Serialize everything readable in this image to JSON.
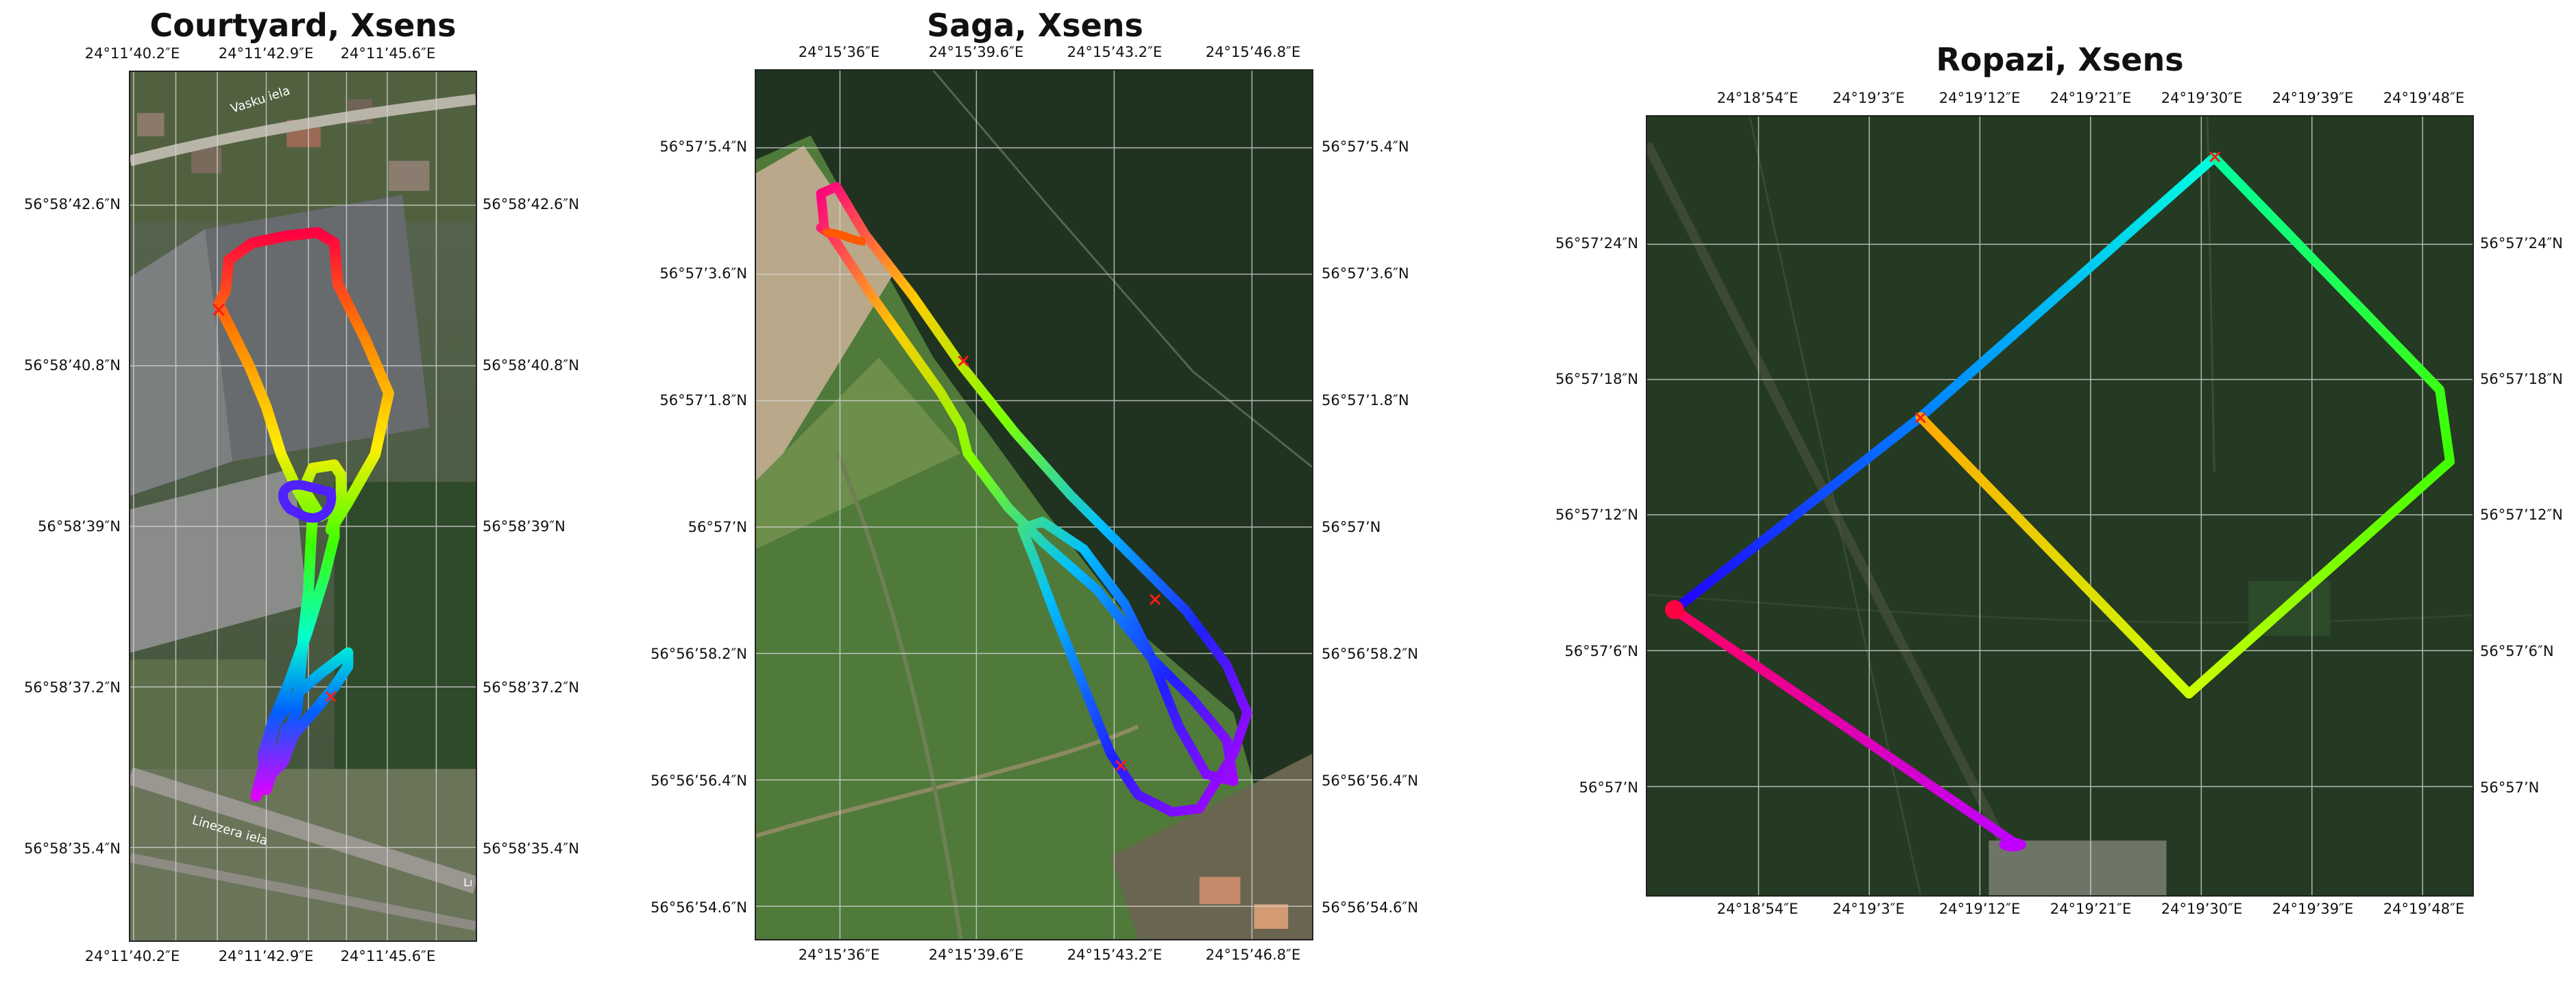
{
  "panels": [
    {
      "key": "courtyard",
      "title": "Courtyard, Xsens",
      "lon_ticks": [
        "24°11’40.2″E",
        "24°11’42.9″E",
        "24°11’45.6″E"
      ],
      "lat_ticks": [
        "56°58’42.6″N",
        "56°58’40.8″N",
        "56°58’39″N",
        "56°58’37.2″N",
        "56°58’35.4″N"
      ],
      "street_labels": [
        "Vasku iela",
        "Linezera iela",
        "Lı"
      ]
    },
    {
      "key": "saga",
      "title": "Saga, Xsens",
      "lon_ticks": [
        "24°15’36″E",
        "24°15’39.6″E",
        "24°15’43.2″E",
        "24°15’46.8″E"
      ],
      "lat_ticks": [
        "56°57’5.4″N",
        "56°57’3.6″N",
        "56°57’1.8″N",
        "56°57’N",
        "56°56’58.2″N",
        "56°56’56.4″N",
        "56°56’54.6″N"
      ]
    },
    {
      "key": "ropazi",
      "title": "Ropazi, Xsens",
      "lon_ticks": [
        "24°18’54″E",
        "24°19’3″E",
        "24°19’12″E",
        "24°19’21″E",
        "24°19’30″E",
        "24°19’39″E",
        "24°19’48″E"
      ],
      "lat_ticks": [
        "56°57’24″N",
        "56°57’18″N",
        "56°57’12″N",
        "56°57’6″N",
        "56°57’N"
      ]
    }
  ],
  "colors": {
    "trajectory_colormap": "hsv (red → yellow → green → cyan → blue → magenta)",
    "start_end_marker": "#ff1a1a",
    "grid": "#d8d8d8",
    "imagery_forest": "#1f3320",
    "imagery_field": "#4f7a3a"
  },
  "icons": {
    "marker": "red-x-marker-icon"
  }
}
